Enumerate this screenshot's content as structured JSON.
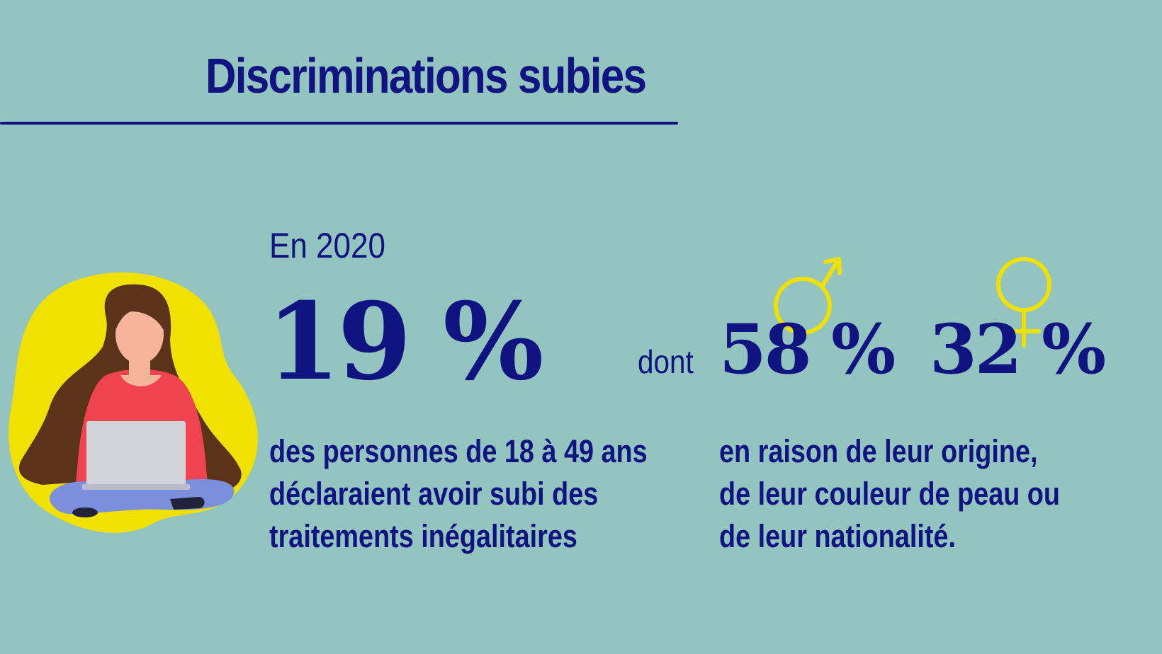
{
  "title": "Discriminations subies",
  "year_label": "En 2020",
  "main_stat": "19 %",
  "main_description": [
    "des personnes de 18 à 49 ans",
    "déclaraient avoir subi des",
    "traitements inégalitaires"
  ],
  "connector": "dont",
  "male_stat": "58 %",
  "female_stat": "32 %",
  "detail_description": [
    "en raison de leur origine,",
    "de leur couleur de peau ou",
    "de leur nationalité."
  ],
  "icons": [
    "woman-with-laptop-illustration",
    "male-symbol-icon",
    "female-symbol-icon"
  ],
  "colors": {
    "background": "#94c4bf",
    "text": "#0f1480",
    "accent_yellow": "#f0e100",
    "sweater": "#ef4350",
    "hair": "#5a3318",
    "skin": "#f6b59a",
    "jeans": "#7b8fdc",
    "laptop": "#d3d3dc"
  }
}
